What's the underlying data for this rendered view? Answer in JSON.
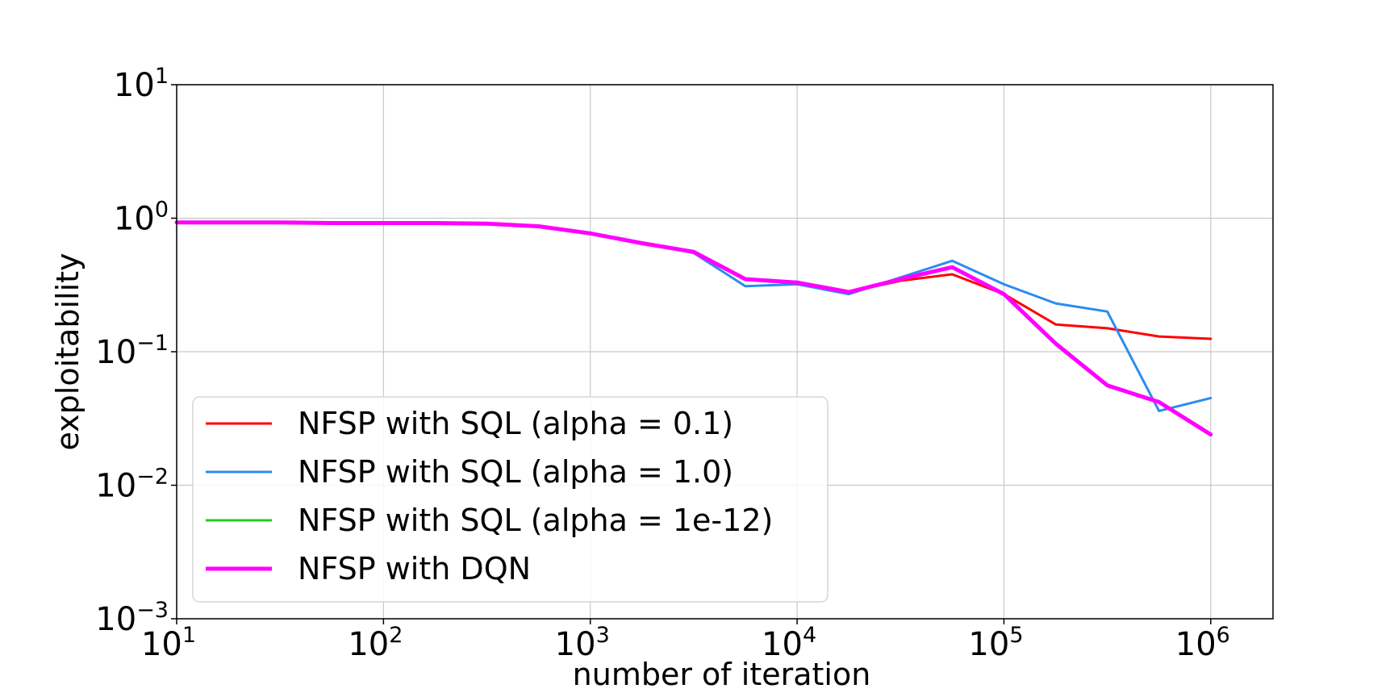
{
  "chart_data": {
    "type": "line",
    "xlabel": "number of iteration",
    "ylabel": "exploitability",
    "xscale": "log",
    "yscale": "log",
    "xlim": [
      10,
      2000000
    ],
    "ylim": [
      0.001,
      10
    ],
    "x_ticks": [
      {
        "base": "10",
        "exp": "1",
        "value": 10
      },
      {
        "base": "10",
        "exp": "2",
        "value": 100
      },
      {
        "base": "10",
        "exp": "3",
        "value": 1000
      },
      {
        "base": "10",
        "exp": "4",
        "value": 10000
      },
      {
        "base": "10",
        "exp": "5",
        "value": 100000
      },
      {
        "base": "10",
        "exp": "6",
        "value": 1000000
      }
    ],
    "y_ticks": [
      {
        "base": "10",
        "exp": "1",
        "value": 10
      },
      {
        "base": "10",
        "exp": "0",
        "value": 1
      },
      {
        "base": "10",
        "exp": "−1",
        "value": 0.1
      },
      {
        "base": "10",
        "exp": "−2",
        "value": 0.01
      },
      {
        "base": "10",
        "exp": "−3",
        "value": 0.001
      }
    ],
    "grid": true,
    "legend_position": "lower-left",
    "series": [
      {
        "name": "NFSP with SQL (alpha = 0.1)",
        "color": "#ff0000",
        "width": 3,
        "x": [
          10,
          31.6,
          56,
          100,
          178,
          316,
          562,
          1000,
          1780,
          3160,
          5620,
          10000,
          17800,
          31600,
          56200,
          100000,
          178000,
          316000,
          562000,
          1000000
        ],
        "y": [
          0.93,
          0.93,
          0.92,
          0.92,
          0.92,
          0.91,
          0.87,
          0.77,
          0.65,
          0.56,
          0.35,
          0.33,
          0.28,
          0.34,
          0.38,
          0.27,
          0.16,
          0.15,
          0.13,
          0.125
        ]
      },
      {
        "name": "NFSP with SQL (alpha = 1.0)",
        "color": "#2b8cf0",
        "width": 3,
        "x": [
          10,
          31.6,
          56,
          100,
          178,
          316,
          562,
          1000,
          1780,
          3160,
          5620,
          10000,
          17800,
          31600,
          56200,
          100000,
          178000,
          316000,
          562000,
          1000000
        ],
        "y": [
          0.93,
          0.93,
          0.92,
          0.92,
          0.92,
          0.91,
          0.87,
          0.77,
          0.65,
          0.55,
          0.31,
          0.32,
          0.27,
          0.36,
          0.48,
          0.32,
          0.23,
          0.2,
          0.036,
          0.045
        ]
      },
      {
        "name": "NFSP with SQL (alpha = 1e-12)",
        "color": "#22cc22",
        "width": 3,
        "x": [
          10,
          31.6,
          56,
          100,
          178,
          316,
          562,
          1000,
          1780,
          3160,
          5620,
          10000,
          17800,
          31600,
          56200,
          100000,
          178000,
          316000,
          562000,
          1000000
        ],
        "y": [
          0.93,
          0.93,
          0.92,
          0.92,
          0.92,
          0.91,
          0.87,
          0.77,
          0.65,
          0.56,
          0.35,
          0.33,
          0.28,
          0.35,
          0.43,
          0.27,
          0.115,
          0.056,
          0.042,
          0.024
        ]
      },
      {
        "name": "NFSP with DQN",
        "color": "#ff00ff",
        "width": 5,
        "x": [
          10,
          31.6,
          56,
          100,
          178,
          316,
          562,
          1000,
          1780,
          3160,
          5620,
          10000,
          17800,
          31600,
          56200,
          100000,
          178000,
          316000,
          562000,
          1000000
        ],
        "y": [
          0.93,
          0.93,
          0.92,
          0.92,
          0.92,
          0.91,
          0.87,
          0.77,
          0.65,
          0.56,
          0.35,
          0.33,
          0.28,
          0.35,
          0.43,
          0.27,
          0.115,
          0.056,
          0.042,
          0.024
        ]
      }
    ]
  }
}
